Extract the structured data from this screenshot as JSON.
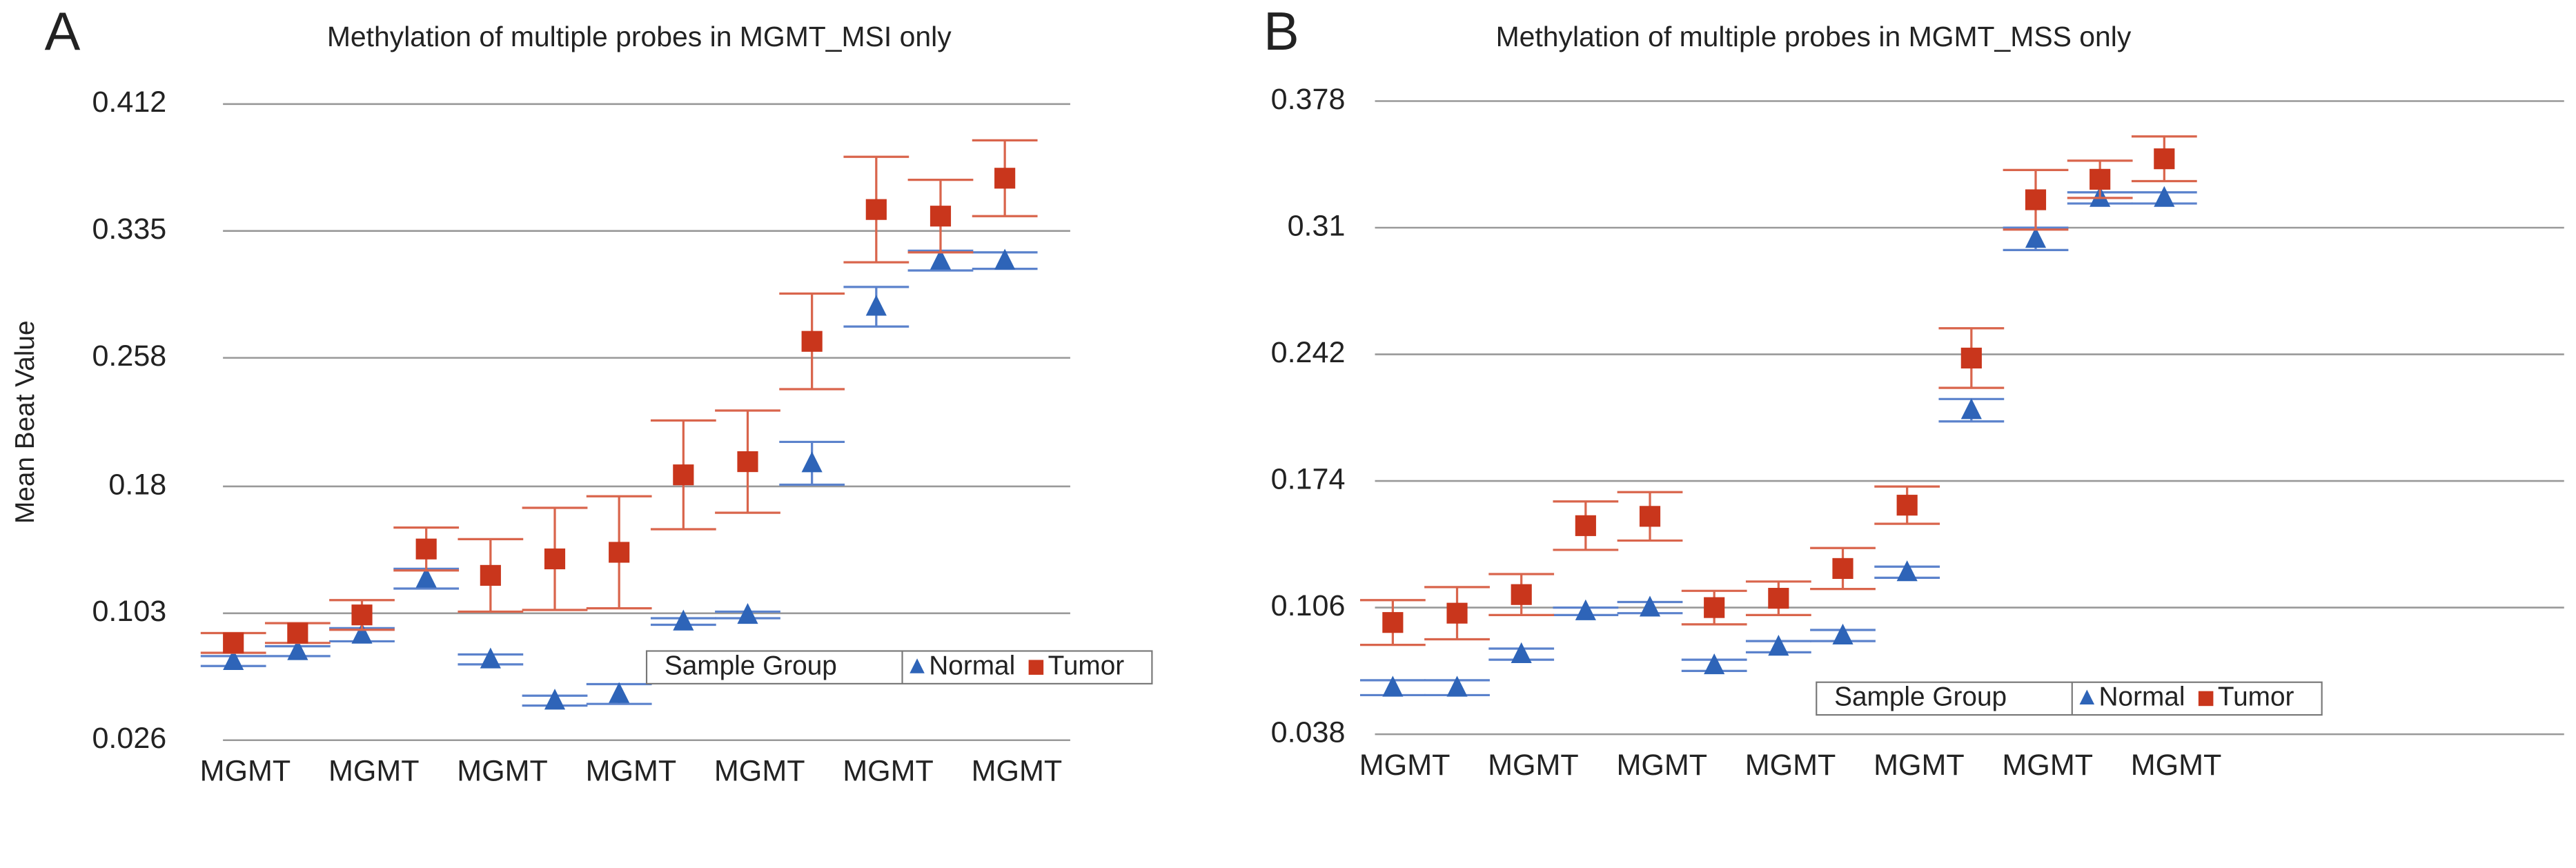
{
  "chart_data": [
    {
      "type": "errorbar",
      "label": "A",
      "title": "Methylation of multiple probes in MGMT_MSI only",
      "ylabel": "Mean Beat Value",
      "categories": [
        "MGMT",
        null,
        "MGMT",
        null,
        "MGMT",
        null,
        "MGMT",
        null,
        "MGMT",
        null,
        "MGMT",
        null,
        "MGMT"
      ],
      "ylim": [
        0.026,
        0.412
      ],
      "yticks": [
        0.026,
        0.103,
        0.18,
        0.258,
        0.335,
        0.412
      ],
      "grid": true,
      "legend_title": "Sample Group",
      "legend": "lower right",
      "series": [
        {
          "name": "Normal",
          "color": "#2e64b8",
          "error_color": "#5b82cc",
          "marker": "triangle",
          "values": [
            0.074,
            0.08,
            0.09,
            0.124,
            0.075,
            0.05,
            0.054,
            0.098,
            0.102,
            0.194,
            0.289,
            0.317,
            0.317
          ],
          "errors": [
            0.003,
            0.003,
            0.004,
            0.006,
            0.003,
            0.003,
            0.006,
            0.002,
            0.002,
            0.013,
            0.012,
            0.006,
            0.005
          ]
        },
        {
          "name": "Tumor",
          "color": "#c9361c",
          "error_color": "#d9654c",
          "marker": "square",
          "values": [
            0.085,
            0.091,
            0.102,
            0.142,
            0.126,
            0.136,
            0.14,
            0.187,
            0.195,
            0.268,
            0.348,
            0.344,
            0.367
          ],
          "errors": [
            0.006,
            0.006,
            0.009,
            0.013,
            0.022,
            0.031,
            0.034,
            0.033,
            0.031,
            0.029,
            0.032,
            0.022,
            0.023
          ]
        }
      ]
    },
    {
      "type": "errorbar",
      "label": "B",
      "title": "Methylation of multiple probes in MGMT_MSS only",
      "categories": [
        "MGMT",
        null,
        "MGMT",
        null,
        "MGMT",
        null,
        "MGMT",
        null,
        "MGMT",
        null,
        "MGMT",
        null,
        "MGMT"
      ],
      "ylim": [
        0.038,
        0.378
      ],
      "yticks": [
        0.038,
        0.106,
        0.174,
        0.242,
        0.31,
        0.378
      ],
      "grid": true,
      "legend_title": "Sample Group",
      "legend": "lower right",
      "series": [
        {
          "name": "Normal",
          "color": "#2e64b8",
          "error_color": "#5b82cc",
          "marker": "triangle",
          "values": [
            0.063,
            0.063,
            0.081,
            0.104,
            0.106,
            0.075,
            0.085,
            0.091,
            0.125,
            0.212,
            0.304,
            0.326,
            0.326
          ],
          "errors": [
            0.004,
            0.004,
            0.003,
            0.002,
            0.003,
            0.003,
            0.003,
            0.003,
            0.003,
            0.006,
            0.006,
            0.003,
            0.003
          ]
        },
        {
          "name": "Tumor",
          "color": "#c9361c",
          "error_color": "#d9654c",
          "marker": "square",
          "values": [
            0.098,
            0.103,
            0.113,
            0.15,
            0.155,
            0.106,
            0.111,
            0.127,
            0.161,
            0.24,
            0.325,
            0.336,
            0.347
          ],
          "errors": [
            0.012,
            0.014,
            0.011,
            0.013,
            0.013,
            0.009,
            0.009,
            0.011,
            0.01,
            0.016,
            0.016,
            0.01,
            0.012
          ]
        }
      ]
    }
  ]
}
